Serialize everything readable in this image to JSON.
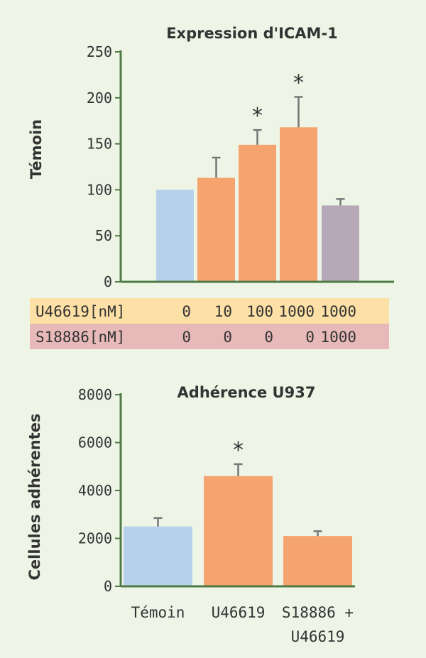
{
  "chart_data": [
    {
      "type": "bar",
      "title": "Expression d'ICAM-1",
      "ylabel": "Témoin",
      "ylim": [
        0,
        250
      ],
      "yticks": [
        "0",
        "50",
        "100",
        "150",
        "200",
        "250"
      ],
      "values": [
        100,
        113,
        149,
        168,
        83
      ],
      "errors": [
        0,
        22,
        16,
        33,
        7
      ],
      "significant": [
        false,
        false,
        true,
        true,
        false
      ],
      "star_label": "*",
      "colors": [
        "#b7d1ec",
        "#f6a46f",
        "#f6a46f",
        "#f6a46f",
        "#b7a8b8"
      ],
      "conditions": [
        {
          "label": "U46619[nM]",
          "values": [
            "0",
            "10",
            "100",
            "1000",
            "1000"
          ],
          "color": "#fde0a6"
        },
        {
          "label": "S18886[nM]",
          "values": [
            "0",
            "0",
            "0",
            "0",
            "1000"
          ],
          "color": "#e8b9b9"
        }
      ]
    },
    {
      "type": "bar",
      "title": "Adhérence U937",
      "ylabel": "Cellules adhérentes",
      "ylim": [
        0,
        8000
      ],
      "yticks": [
        "0",
        "2000",
        "4000",
        "6000",
        "8000"
      ],
      "categories": [
        [
          "Témoin"
        ],
        [
          "U46619"
        ],
        [
          "S18886 +",
          "U46619"
        ]
      ],
      "values": [
        2500,
        4600,
        2100
      ],
      "errors": [
        350,
        500,
        200
      ],
      "significant": [
        false,
        true,
        false
      ],
      "star_label": "*",
      "colors": [
        "#b7d1ec",
        "#f6a46f",
        "#f6a46f"
      ]
    }
  ]
}
